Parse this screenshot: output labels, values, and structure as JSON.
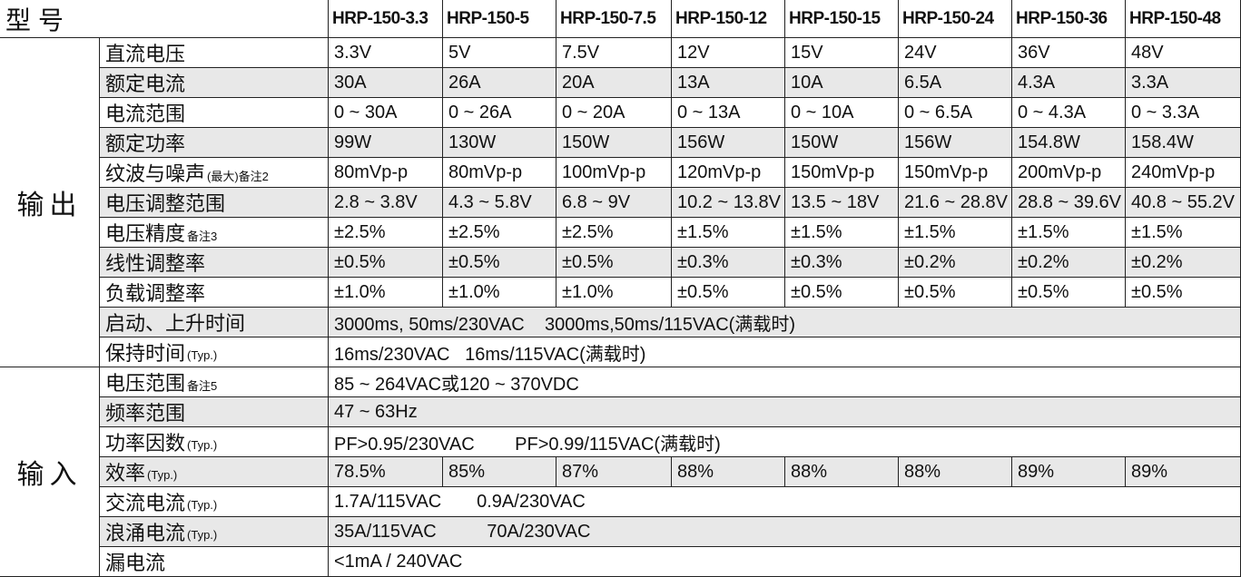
{
  "header": {
    "title": "型号",
    "models": [
      "HRP-150-3.3",
      "HRP-150-5",
      "HRP-150-7.5",
      "HRP-150-12",
      "HRP-150-15",
      "HRP-150-24",
      "HRP-150-36",
      "HRP-150-48"
    ]
  },
  "sections": [
    {
      "label": "输出",
      "rows": [
        {
          "name": "直流电压",
          "cells": [
            "3.3V",
            "5V",
            "7.5V",
            "12V",
            "15V",
            "24V",
            "36V",
            "48V"
          ]
        },
        {
          "name": "额定电流",
          "cells": [
            "30A",
            "26A",
            "20A",
            "13A",
            "10A",
            "6.5A",
            "4.3A",
            "3.3A"
          ]
        },
        {
          "name": "电流范围",
          "cells": [
            "0 ~ 30A",
            "0 ~ 26A",
            "0 ~ 20A",
            "0 ~ 13A",
            "0 ~ 10A",
            "0 ~ 6.5A",
            "0 ~ 4.3A",
            "0 ~ 3.3A"
          ]
        },
        {
          "name": "额定功率",
          "cells": [
            "99W",
            "130W",
            "150W",
            "156W",
            "150W",
            "156W",
            "154.8W",
            "158.4W"
          ]
        },
        {
          "name": "纹波与噪声",
          "note": "(最大)备注2",
          "cells": [
            "80mVp-p",
            "80mVp-p",
            "100mVp-p",
            "120mVp-p",
            "150mVp-p",
            "150mVp-p",
            "200mVp-p",
            "240mVp-p"
          ]
        },
        {
          "name": "电压调整范围",
          "cells": [
            "2.8 ~ 3.8V",
            "4.3 ~ 5.8V",
            "6.8 ~ 9V",
            "10.2 ~ 13.8V",
            "13.5 ~ 18V",
            "21.6 ~ 28.8V",
            "28.8 ~ 39.6V",
            "40.8 ~ 55.2V"
          ]
        },
        {
          "name": "电压精度",
          "note": "备注3",
          "cells": [
            "±2.5%",
            "±2.5%",
            "±2.5%",
            "±1.5%",
            "±1.5%",
            "±1.5%",
            "±1.5%",
            "±1.5%"
          ]
        },
        {
          "name": "线性调整率",
          "cells": [
            "±0.5%",
            "±0.5%",
            "±0.5%",
            "±0.3%",
            "±0.3%",
            "±0.2%",
            "±0.2%",
            "±0.2%"
          ]
        },
        {
          "name": "负载调整率",
          "cells": [
            "±1.0%",
            "±1.0%",
            "±1.0%",
            "±0.5%",
            "±0.5%",
            "±0.5%",
            "±0.5%",
            "±0.5%"
          ]
        },
        {
          "name": "启动、上升时间",
          "cells": [
            "3000ms, 50ms/230VAC    3000ms,50ms/115VAC(满载时)"
          ]
        },
        {
          "name": "保持时间",
          "note": "(Typ.)",
          "cells": [
            "16ms/230VAC   16ms/115VAC(满载时)"
          ]
        }
      ]
    },
    {
      "label": "输入",
      "rows": [
        {
          "name": "电压范围",
          "note": "备注5",
          "cells": [
            "85 ~ 264VAC或120 ~ 370VDC"
          ]
        },
        {
          "name": "频率范围",
          "cells": [
            "47 ~ 63Hz"
          ]
        },
        {
          "name": "功率因数",
          "note": "(Typ.)",
          "cells": [
            "PF>0.95/230VAC        PF>0.99/115VAC(满载时)"
          ]
        },
        {
          "name": "效率",
          "note": "(Typ.)",
          "cells": [
            "78.5%",
            "85%",
            "87%",
            "88%",
            "88%",
            "88%",
            "89%",
            "89%"
          ]
        },
        {
          "name": "交流电流",
          "note": "(Typ.)",
          "cells": [
            "1.7A/115VAC       0.9A/230VAC"
          ]
        },
        {
          "name": "浪涌电流",
          "note": "(Typ.)",
          "cells": [
            "35A/115VAC          70A/230VAC"
          ]
        },
        {
          "name": "漏电流",
          "cells": [
            "<1mA / 240VAC"
          ]
        }
      ]
    }
  ]
}
